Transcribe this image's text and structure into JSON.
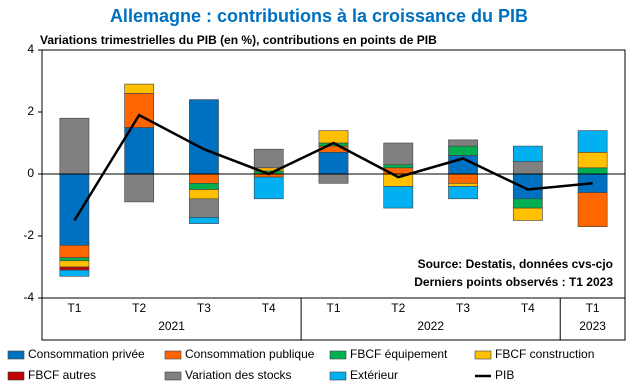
{
  "chart_data": {
    "type": "stacked_bar_line",
    "title": "Allemagne : contributions à la croissance du PIB",
    "subtitle": "Variations trimestrielles du PIB (en %), contributions en points de PIB",
    "annotations": [
      "Source: Destatis, données cvs-cjo",
      "Derniers points observés : T1 2023"
    ],
    "categories": [
      "T1",
      "T2",
      "T3",
      "T4",
      "T1",
      "T2",
      "T3",
      "T4",
      "T1"
    ],
    "years": [
      "2021",
      "2021",
      "2021",
      "2021",
      "2022",
      "2022",
      "2022",
      "2022",
      "2023"
    ],
    "ylim": [
      -4,
      4
    ],
    "yticks": [
      -4,
      -2,
      0,
      2,
      4
    ],
    "grid": false,
    "series": [
      {
        "name": "Consommation privée",
        "color": "#0070c0",
        "kind": "bar",
        "values": [
          -2.3,
          1.5,
          2.4,
          0,
          0.7,
          0,
          0.6,
          -0.8,
          -0.6
        ]
      },
      {
        "name": "Consommation publique",
        "color": "#ff6600",
        "kind": "bar",
        "values": [
          -0.4,
          1.1,
          -0.3,
          -0.1,
          0.2,
          0.2,
          -0.3,
          0,
          -1.1
        ]
      },
      {
        "name": "FBCF équipement",
        "color": "#00b050",
        "kind": "bar",
        "values": [
          -0.1,
          0,
          -0.2,
          0.1,
          0.1,
          0.1,
          0.3,
          -0.3,
          0.2
        ]
      },
      {
        "name": "FBCF construction",
        "color": "#ffc000",
        "kind": "bar",
        "values": [
          -0.2,
          0.3,
          -0.3,
          0.1,
          0.4,
          -0.4,
          -0.1,
          -0.4,
          0.5
        ]
      },
      {
        "name": "FBCF autres",
        "color": "#c00000",
        "kind": "bar",
        "values": [
          -0.1,
          0,
          0,
          0,
          0,
          0,
          0,
          0,
          0
        ]
      },
      {
        "name": "Variation des stocks",
        "color": "#808080",
        "kind": "bar",
        "values": [
          1.8,
          -0.9,
          -0.6,
          0.6,
          -0.3,
          0.7,
          0.2,
          0.4,
          0
        ]
      },
      {
        "name": "Extérieur",
        "color": "#00b0f0",
        "kind": "bar",
        "values": [
          -0.2,
          0,
          -0.2,
          -0.7,
          0,
          -0.7,
          -0.4,
          0.5,
          0.7
        ]
      },
      {
        "name": "PIB",
        "color": "#000000",
        "kind": "line",
        "values": [
          -1.5,
          1.9,
          0.8,
          0.0,
          1.0,
          -0.1,
          0.5,
          -0.5,
          -0.3
        ]
      }
    ]
  }
}
